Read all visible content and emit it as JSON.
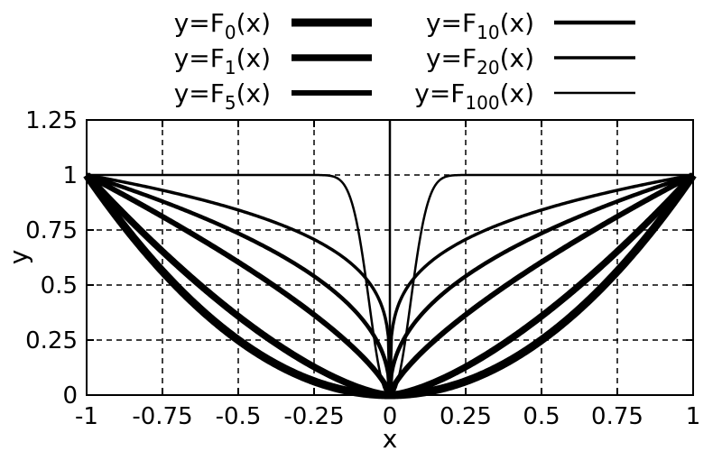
{
  "chart_data": {
    "type": "line",
    "xlabel": "x",
    "ylabel": "y",
    "xlim": [
      -1,
      1
    ],
    "ylim": [
      0,
      1.25
    ],
    "grid": true,
    "legend_position": "top",
    "x_ticks": [
      "-1",
      "-0.75",
      "-0.5",
      "-0.25",
      "0",
      "0.25",
      "0.5",
      "0.75",
      "1"
    ],
    "y_ticks": [
      "0",
      "0.25",
      "0.5",
      "0.75",
      "1",
      "1.25"
    ],
    "x": [
      -1,
      -0.75,
      -0.5,
      -0.25,
      -0.125,
      -0.05,
      0,
      0.05,
      0.125,
      0.25,
      0.5,
      0.75,
      1
    ],
    "series": [
      {
        "name": "y=F0(x)",
        "label_base": "y=F",
        "label_sub": "0",
        "label_tail": "(x)",
        "n": 0,
        "stroke_key": "w0",
        "values": [
          1,
          0.56,
          0.25,
          0.06,
          0.016,
          0.003,
          0,
          0.003,
          0.016,
          0.06,
          0.25,
          0.56,
          1
        ]
      },
      {
        "name": "y=F1(x)",
        "label_base": "y=F",
        "label_sub": "1",
        "label_tail": "(x)",
        "n": 1,
        "stroke_key": "w1",
        "values": [
          1,
          0.81,
          0.5,
          0.17,
          0.06,
          0.01,
          0,
          0.01,
          0.06,
          0.17,
          0.5,
          0.81,
          1
        ]
      },
      {
        "name": "y=F5(x)",
        "label_base": "y=F",
        "label_sub": "5",
        "label_tail": "(x)",
        "n": 5,
        "stroke_key": "w5",
        "values": [
          1,
          0.93,
          0.7,
          0.33,
          0.13,
          0.03,
          0,
          0.03,
          0.13,
          0.33,
          0.7,
          0.93,
          1
        ]
      },
      {
        "name": "y=F10(x)",
        "label_base": "y=F",
        "label_sub": "10",
        "label_tail": "(x)",
        "n": 10,
        "stroke_key": "w10",
        "values": [
          1,
          0.97,
          0.81,
          0.45,
          0.18,
          0.04,
          0,
          0.04,
          0.18,
          0.45,
          0.81,
          0.97,
          1
        ]
      },
      {
        "name": "y=F20(x)",
        "label_base": "y=F",
        "label_sub": "20",
        "label_tail": "(x)",
        "n": 20,
        "stroke_key": "w20",
        "values": [
          1,
          0.99,
          0.92,
          0.61,
          0.27,
          0.06,
          0,
          0.06,
          0.27,
          0.61,
          0.92,
          0.99,
          1
        ]
      },
      {
        "name": "y=F100(x)",
        "label_base": "y=F",
        "label_sub": "100",
        "label_tail": "(x)",
        "n": 100,
        "stroke_key": "w100",
        "values": [
          1,
          1,
          1,
          0.99,
          0.74,
          0.21,
          0,
          0.21,
          0.74,
          0.99,
          1,
          1,
          1
        ]
      }
    ]
  },
  "style": {
    "line_color": "#000000",
    "grid_color": "#000000",
    "background": "#ffffff"
  }
}
